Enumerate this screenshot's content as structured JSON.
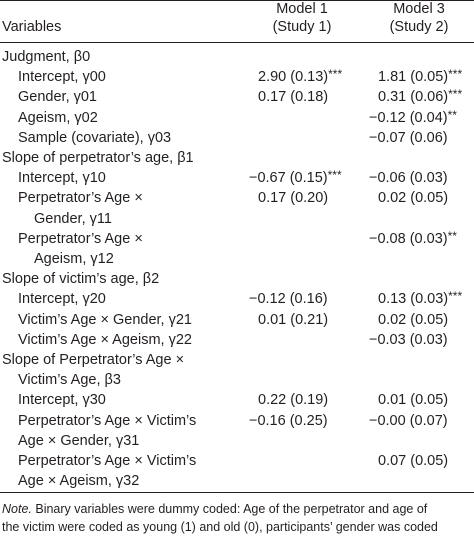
{
  "header": {
    "variables": "Variables",
    "model1": "Model 1",
    "study1": "(Study 1)",
    "model3": "Model 3",
    "study2": "(Study 2)"
  },
  "rows": [
    {
      "label": "Judgment, β0",
      "indent": 0,
      "m1": "",
      "m1s": "",
      "m3": "",
      "m3s": ""
    },
    {
      "label": "Intercept, γ00",
      "indent": 1,
      "m1": "2.90 (0.13)",
      "m1s": "***",
      "m3": "1.81 (0.05)",
      "m3s": "***"
    },
    {
      "label": "Gender, γ01",
      "indent": 1,
      "m1": "0.17 (0.18)",
      "m1s": "",
      "m3": "0.31 (0.06)",
      "m3s": "***"
    },
    {
      "label": "Ageism, γ02",
      "indent": 1,
      "m1": "",
      "m1s": "",
      "m3": "−0.12 (0.04)",
      "m3s": "**"
    },
    {
      "label": "Sample (covariate), γ03",
      "indent": 1,
      "m1": "",
      "m1s": "",
      "m3": "−0.07 (0.06)",
      "m3s": ""
    },
    {
      "label": "Slope of perpetrator’s age, β1",
      "indent": 0,
      "m1": "",
      "m1s": "",
      "m3": "",
      "m3s": ""
    },
    {
      "label": "Intercept, γ10",
      "indent": 1,
      "m1": "−0.67 (0.15)",
      "m1s": "***",
      "m3": "−0.06 (0.03)",
      "m3s": ""
    },
    {
      "label": "Perpetrator’s Age ×",
      "indent": 1,
      "m1": "0.17 (0.20)",
      "m1s": "",
      "m3": "0.02 (0.05)",
      "m3s": ""
    },
    {
      "label": "Gender, γ11",
      "indent": 2,
      "m1": "",
      "m1s": "",
      "m3": "",
      "m3s": ""
    },
    {
      "label": "Perpetrator’s Age ×",
      "indent": 1,
      "m1": "",
      "m1s": "",
      "m3": "−0.08 (0.03)",
      "m3s": "**"
    },
    {
      "label": "Ageism, γ12",
      "indent": 2,
      "m1": "",
      "m1s": "",
      "m3": "",
      "m3s": ""
    },
    {
      "label": "Slope of victim’s age, β2",
      "indent": 0,
      "m1": "",
      "m1s": "",
      "m3": "",
      "m3s": ""
    },
    {
      "label": "Intercept, γ20",
      "indent": 1,
      "m1": "−0.12 (0.16)",
      "m1s": "",
      "m3": "0.13 (0.03)",
      "m3s": "***"
    },
    {
      "label": "Victim’s Age × Gender, γ21",
      "indent": 1,
      "m1": "0.01 (0.21)",
      "m1s": "",
      "m3": "0.02 (0.05)",
      "m3s": ""
    },
    {
      "label": "Victim’s Age × Ageism, γ22",
      "indent": 1,
      "m1": "",
      "m1s": "",
      "m3": "−0.03 (0.03)",
      "m3s": ""
    },
    {
      "label": "Slope of Perpetrator’s Age ×",
      "indent": 0,
      "m1": "",
      "m1s": "",
      "m3": "",
      "m3s": ""
    },
    {
      "label": "Victim’s Age, β3",
      "indent": 1,
      "m1": "",
      "m1s": "",
      "m3": "",
      "m3s": ""
    },
    {
      "label": "Intercept, γ30",
      "indent": 1,
      "m1": "0.22 (0.19)",
      "m1s": "",
      "m3": "0.01 (0.05)",
      "m3s": ""
    },
    {
      "label": "Perpetrator’s Age × Victim’s",
      "indent": 1,
      "m1": "−0.16 (0.25)",
      "m1s": "",
      "m3": "−0.00 (0.07)",
      "m3s": ""
    },
    {
      "label": "Age × Gender, γ31",
      "indent": 1,
      "m1": "",
      "m1s": "",
      "m3": "",
      "m3s": ""
    },
    {
      "label": "Perpetrator’s Age × Victim’s",
      "indent": 1,
      "m1": "",
      "m1s": "",
      "m3": "0.07 (0.05)",
      "m3s": ""
    },
    {
      "label": "Age × Ageism, γ32",
      "indent": 1,
      "m1": "",
      "m1s": "",
      "m3": "",
      "m3s": ""
    }
  ],
  "note": {
    "label": "Note.",
    "line1": " Binary variables were dummy coded: Age of the perpetrator and age of",
    "line2": "the victim were coded as young (1) and old (0), participants’ gender was coded"
  }
}
